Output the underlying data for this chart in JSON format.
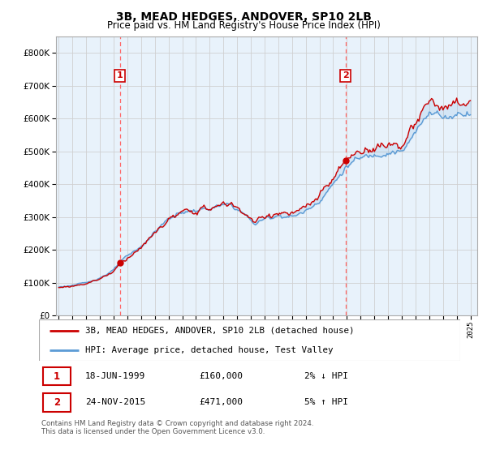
{
  "title": "3B, MEAD HEDGES, ANDOVER, SP10 2LB",
  "subtitle": "Price paid vs. HM Land Registry's House Price Index (HPI)",
  "legend_line1": "3B, MEAD HEDGES, ANDOVER, SP10 2LB (detached house)",
  "legend_line2": "HPI: Average price, detached house, Test Valley",
  "annotation1_date": "18-JUN-1999",
  "annotation1_price": "£160,000",
  "annotation1_hpi": "2% ↓ HPI",
  "annotation2_date": "24-NOV-2015",
  "annotation2_price": "£471,000",
  "annotation2_hpi": "5% ↑ HPI",
  "footer": "Contains HM Land Registry data © Crown copyright and database right 2024.\nThis data is licensed under the Open Government Licence v3.0.",
  "sale1_year": 1999.46,
  "sale1_price": 160000,
  "sale2_year": 2015.9,
  "sale2_price": 471000,
  "vline1_x": 1999.46,
  "vline2_x": 2015.9,
  "hpi_color": "#5b9bd5",
  "price_color": "#cc0000",
  "vline_color": "#ff6666",
  "dot_color": "#cc0000",
  "fill_color": "#ddeeff",
  "ylim_min": 0,
  "ylim_max": 850000,
  "xmin": 1994.8,
  "xmax": 2025.5,
  "background_color": "#ffffff",
  "grid_color": "#d0d0d0",
  "num_box_color": "#cc0000"
}
